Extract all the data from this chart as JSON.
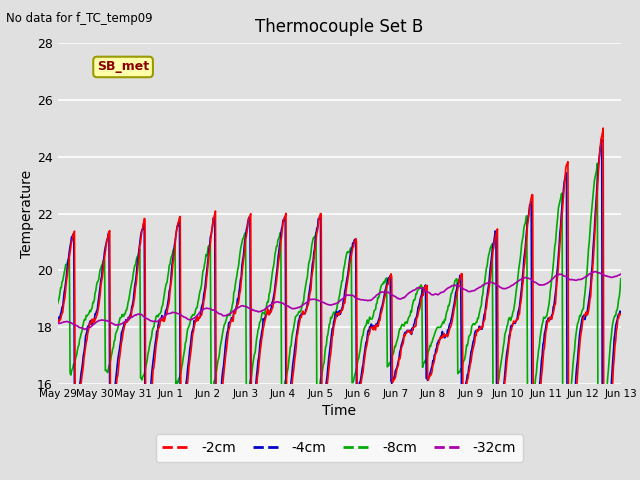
{
  "title": "Thermocouple Set B",
  "xlabel": "Time",
  "ylabel": "Temperature",
  "no_data_text": "No data for f_TC_temp09",
  "legend_label_text": "SB_met",
  "ylim": [
    16,
    28
  ],
  "yticks": [
    16,
    18,
    20,
    22,
    24,
    26,
    28
  ],
  "background_color": "#e0e0e0",
  "plot_bg_color": "#e0e0e0",
  "colors": {
    "-2cm": "#ff0000",
    "-4cm": "#0000cc",
    "-8cm": "#00aa00",
    "-32cm": "#aa00aa"
  },
  "series_labels": [
    "-2cm",
    "-4cm",
    "-8cm",
    "-32cm"
  ],
  "xtick_labels": [
    "May 29",
    "May 30",
    "May 31",
    "Jun 1",
    "Jun 2",
    "Jun 3",
    "Jun 4",
    "Jun 5",
    "Jun 6",
    "Jun 7",
    "Jun 8",
    "Jun 9",
    "Jun 10",
    "Jun 11",
    "Jun 12",
    "Jun 13"
  ],
  "figsize": [
    6.4,
    4.8
  ],
  "dpi": 100
}
